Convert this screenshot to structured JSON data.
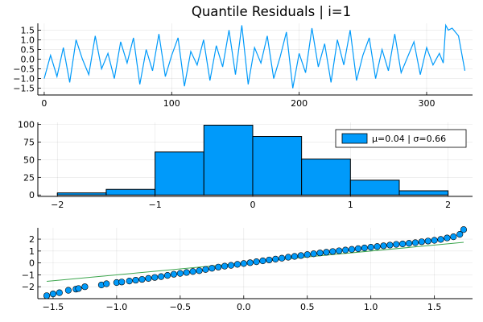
{
  "title": "Quantile Residuals | i=1",
  "colors": {
    "series": "#009AFA",
    "reference_line": "#3DA64E",
    "bar_stroke": "#000000",
    "grid": "#E5E5E5"
  },
  "chart_data": [
    {
      "id": "residual-series",
      "type": "line",
      "title": "Quantile Residuals | i=1",
      "xlim": [
        -5,
        336
      ],
      "ylim": [
        -1.85,
        1.85
      ],
      "xticks": [
        0,
        100,
        200,
        300
      ],
      "yticks": [
        -1.5,
        -1.0,
        -0.5,
        0.0,
        0.5,
        1.0,
        1.5
      ],
      "ytick_labels": [
        "−1.5",
        "−1.0",
        "−0.5",
        "0.0",
        "0.5",
        "1.0",
        "1.5"
      ],
      "n_points": 331,
      "x": [
        0,
        5,
        10,
        15,
        20,
        25,
        30,
        35,
        40,
        45,
        50,
        55,
        60,
        65,
        70,
        75,
        80,
        85,
        90,
        95,
        100,
        105,
        110,
        115,
        120,
        125,
        130,
        135,
        140,
        145,
        150,
        155,
        160,
        165,
        170,
        175,
        180,
        185,
        190,
        195,
        200,
        205,
        210,
        215,
        220,
        225,
        230,
        235,
        240,
        245,
        250,
        255,
        260,
        265,
        270,
        275,
        280,
        285,
        290,
        295,
        300,
        305,
        310,
        313,
        315,
        317,
        320,
        325,
        330
      ],
      "values": [
        -1.0,
        0.2,
        -0.9,
        0.6,
        -1.2,
        1.0,
        0.0,
        -0.8,
        1.2,
        -0.5,
        0.3,
        -1.0,
        0.9,
        -0.2,
        1.1,
        -1.3,
        0.5,
        -0.6,
        1.3,
        -0.9,
        0.2,
        1.1,
        -1.4,
        0.4,
        -0.3,
        1.0,
        -1.1,
        0.7,
        -0.4,
        1.5,
        -0.8,
        1.75,
        -1.3,
        0.6,
        -0.2,
        1.2,
        -1.0,
        0.1,
        1.4,
        -1.5,
        0.3,
        -0.7,
        1.6,
        -0.4,
        0.8,
        -1.2,
        1.0,
        -0.3,
        1.5,
        -1.1,
        0.2,
        1.1,
        -1.0,
        0.5,
        -0.6,
        1.3,
        -0.7,
        0.1,
        0.9,
        -0.8,
        0.6,
        -0.3,
        0.3,
        -0.2,
        1.75,
        1.5,
        1.6,
        1.2,
        -0.6
      ],
      "grid": true
    },
    {
      "id": "residual-histogram",
      "type": "bar",
      "bin_edges": [
        -2.0,
        -1.5,
        -1.0,
        -0.5,
        0.0,
        0.5,
        1.0,
        1.5,
        2.0
      ],
      "values": [
        3,
        8,
        61,
        99,
        83,
        51,
        21,
        6
      ],
      "xlim": [
        -2.2,
        2.25
      ],
      "ylim": [
        -2,
        103
      ],
      "xticks": [
        -2,
        -1,
        0,
        1,
        2
      ],
      "xtick_labels": [
        "−2",
        "−1",
        "0",
        "1",
        "2"
      ],
      "yticks": [
        0,
        25,
        50,
        75,
        100
      ],
      "legend": {
        "entries": [
          "μ=0.04 | σ=0.66"
        ],
        "position": "top-right"
      },
      "grid": true
    },
    {
      "id": "qq-plot",
      "type": "scatter",
      "xlim": [
        -1.62,
        1.8
      ],
      "ylim": [
        -3.0,
        2.95
      ],
      "xticks": [
        -1.5,
        -1.0,
        -0.5,
        0.0,
        0.5,
        1.0,
        1.5
      ],
      "xtick_labels": [
        "−1.5",
        "−1.0",
        "−0.5",
        "0.0",
        "0.5",
        "1.0",
        "1.5"
      ],
      "yticks": [
        -2,
        -1,
        0,
        1,
        2
      ],
      "ytick_labels": [
        "−2",
        "−1",
        "0",
        "1",
        "2"
      ],
      "reference_line": {
        "x": [
          -1.55,
          1.73
        ],
        "y": [
          -1.55,
          1.73
        ]
      },
      "points": {
        "x": [
          -1.55,
          -1.5,
          -1.45,
          -1.38,
          -1.32,
          -1.3,
          -1.25,
          -1.12,
          -1.08,
          -1.0,
          -0.96,
          -0.9,
          -0.85,
          -0.8,
          -0.75,
          -0.7,
          -0.65,
          -0.6,
          -0.55,
          -0.5,
          -0.45,
          -0.4,
          -0.35,
          -0.3,
          -0.25,
          -0.2,
          -0.15,
          -0.1,
          -0.05,
          0.0,
          0.05,
          0.1,
          0.15,
          0.2,
          0.25,
          0.3,
          0.35,
          0.4,
          0.45,
          0.5,
          0.55,
          0.6,
          0.65,
          0.7,
          0.75,
          0.8,
          0.85,
          0.9,
          0.95,
          1.0,
          1.05,
          1.1,
          1.15,
          1.2,
          1.25,
          1.3,
          1.35,
          1.4,
          1.45,
          1.5,
          1.55,
          1.6,
          1.65,
          1.7,
          1.73
        ],
        "y": [
          -2.75,
          -2.6,
          -2.5,
          -2.3,
          -2.2,
          -2.15,
          -2.0,
          -1.85,
          -1.75,
          -1.65,
          -1.6,
          -1.52,
          -1.45,
          -1.38,
          -1.3,
          -1.22,
          -1.15,
          -1.05,
          -0.95,
          -0.88,
          -0.8,
          -0.72,
          -0.65,
          -0.55,
          -0.45,
          -0.35,
          -0.27,
          -0.2,
          -0.12,
          -0.05,
          0.02,
          0.1,
          0.18,
          0.25,
          0.32,
          0.4,
          0.48,
          0.55,
          0.62,
          0.7,
          0.77,
          0.84,
          0.9,
          0.96,
          1.02,
          1.08,
          1.14,
          1.2,
          1.26,
          1.32,
          1.38,
          1.44,
          1.5,
          1.56,
          1.6,
          1.65,
          1.7,
          1.78,
          1.84,
          1.9,
          1.98,
          2.1,
          2.2,
          2.4,
          2.8
        ]
      },
      "grid": true
    }
  ]
}
